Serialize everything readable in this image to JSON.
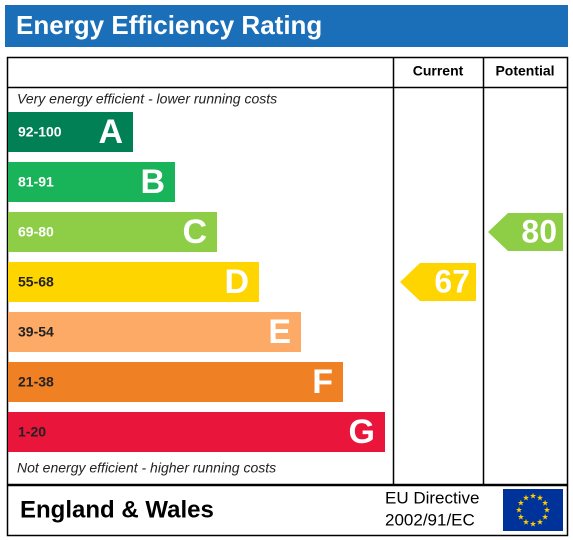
{
  "title": "Energy Efficiency Rating",
  "headers": {
    "current": "Current",
    "potential": "Potential"
  },
  "top_note": "Very energy efficient - lower running costs",
  "bottom_note": "Not energy efficient - higher running costs",
  "bands": [
    {
      "range": "92-100",
      "letter": "A",
      "color": "#008054"
    },
    {
      "range": "81-91",
      "letter": "B",
      "color": "#19b459"
    },
    {
      "range": "69-80",
      "letter": "C",
      "color": "#8dce46"
    },
    {
      "range": "55-68",
      "letter": "D",
      "color": "#ffd500"
    },
    {
      "range": "39-54",
      "letter": "E",
      "color": "#fcaa65"
    },
    {
      "range": "21-38",
      "letter": "F",
      "color": "#ef8023"
    },
    {
      "range": "1-20",
      "letter": "G",
      "color": "#e9153b"
    }
  ],
  "current": {
    "value": 67,
    "color": "#ffd500"
  },
  "potential": {
    "value": 80,
    "color": "#8dce46"
  },
  "footer": {
    "region": "England & Wales",
    "directive_line1": "EU Directive",
    "directive_line2": "2002/91/EC"
  }
}
